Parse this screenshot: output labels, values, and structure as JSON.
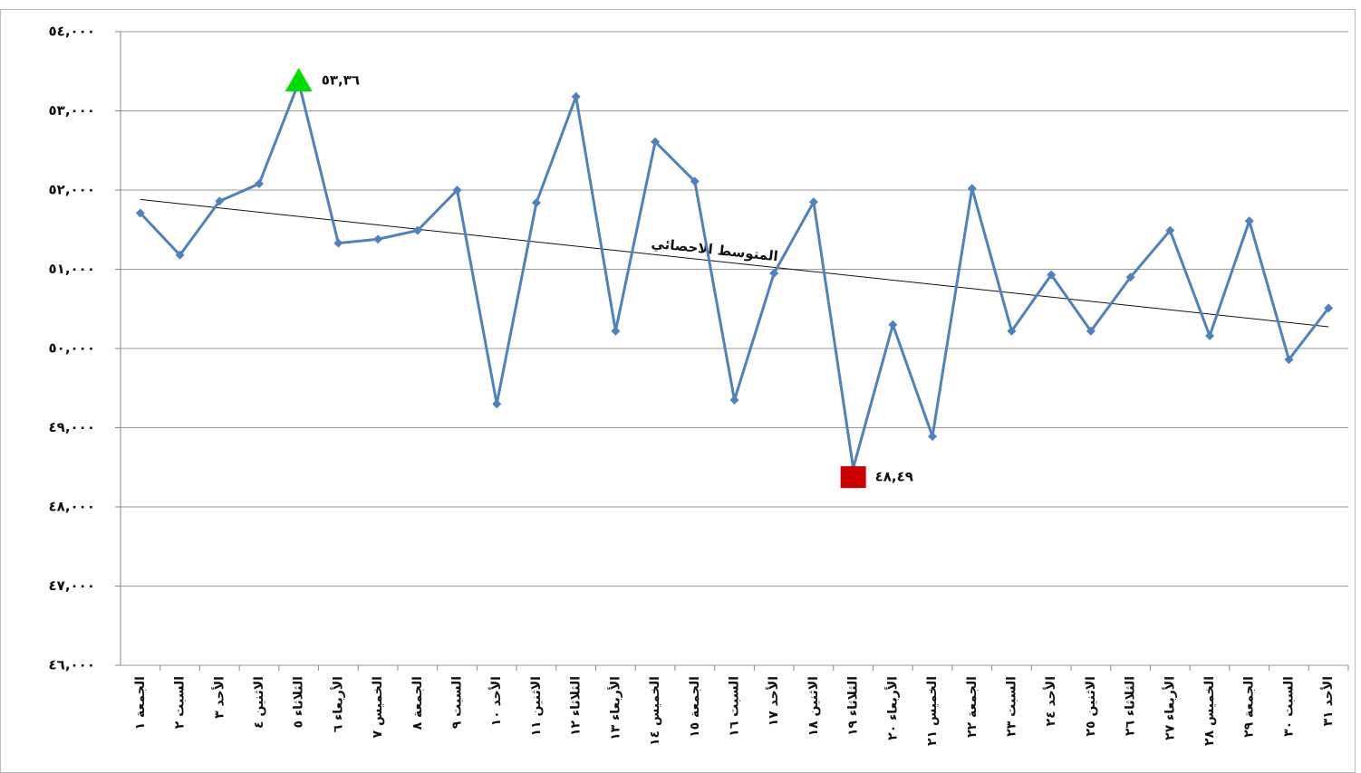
{
  "chart_data": {
    "type": "line",
    "categories": [
      "الجمعة ١",
      "السبت ٢",
      "الأحد ٣",
      "الاثنين ٤",
      "الثلاثاء ٥",
      "الأربعاء ٦",
      "الخميس ٧",
      "الجمعة ٨",
      "السبت ٩",
      "الأحد ١٠",
      "الاثنين ١١",
      "الثلاثاء ١٢",
      "الأربعاء ١٣",
      "الخميس ١٤",
      "الجمعة ١٥",
      "السبت ١٦",
      "الأحد ١٧",
      "الاثنين ١٨",
      "الثلاثاء ١٩",
      "الأربعاء ٢٠",
      "الخميس ٢١",
      "الجمعة ٢٢",
      "السبت ٢٣",
      "الأحد ٢٤",
      "الاثنين ٢٥",
      "الثلاثاء ٢٦",
      "الأربعاء ٢٧",
      "الخميس ٢٨",
      "الجمعة ٢٩",
      "السبت ٣٠",
      "الأحد ٣١"
    ],
    "values": [
      51710,
      51180,
      51860,
      52080,
      53360,
      51330,
      51380,
      51490,
      52000,
      49300,
      51840,
      53180,
      50220,
      52610,
      52110,
      49350,
      50950,
      51850,
      48490,
      50300,
      48890,
      52020,
      50220,
      50930,
      50220,
      50900,
      51490,
      50160,
      51610,
      49860,
      50510
    ],
    "color": "#4f81bd",
    "ylim": [
      46000,
      54000
    ],
    "yticks": [
      {
        "value": 46000,
        "label": "٤٦,٠٠٠"
      },
      {
        "value": 47000,
        "label": "٤٧,٠٠٠"
      },
      {
        "value": 48000,
        "label": "٤٨,٠٠٠"
      },
      {
        "value": 49000,
        "label": "٤٩,٠٠٠"
      },
      {
        "value": 50000,
        "label": "٥٠,٠٠٠"
      },
      {
        "value": 51000,
        "label": "٥١,٠٠٠"
      },
      {
        "value": 52000,
        "label": "٥٢,٠٠٠"
      },
      {
        "value": 53000,
        "label": "٥٣,٠٠٠"
      },
      {
        "value": 54000,
        "label": "٥٤,٠٠٠"
      }
    ],
    "grid": true,
    "max_label": "٥٣,٣٦",
    "max_color": "#00dd00",
    "min_label": "٤٨,٤٩",
    "min_color": "#cc0000",
    "trend_label": "المتوسط الاحصائي"
  }
}
